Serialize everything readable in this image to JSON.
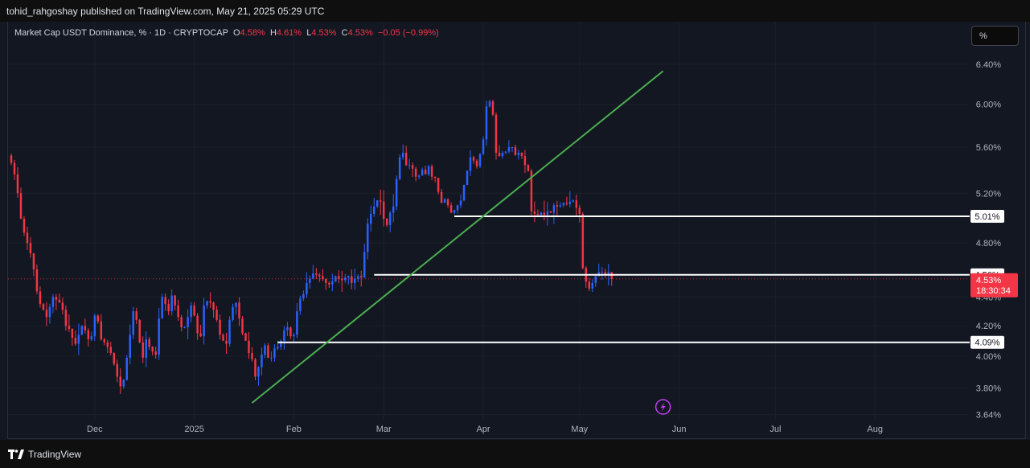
{
  "header": {
    "publisher": "tohid_rahgoshay published on TradingView.com, May 21, 2025 05:29 UTC"
  },
  "legend": {
    "symbol": "Market Cap USDT Dominance, % · 1D · CRYPTOCAP",
    "o_label": "O",
    "o_value": "4.58%",
    "h_label": "H",
    "h_value": "4.61%",
    "l_label": "L",
    "l_value": "4.53%",
    "c_label": "C",
    "c_value": "4.53%",
    "change": "−0.05 (−0.99%)"
  },
  "toolbar": {
    "unit_button": "%"
  },
  "footer": {
    "brand": "TradingView",
    "logo_icon": "tradingview-logo-icon"
  },
  "colors": {
    "up": "#2962ff",
    "down": "#f23645",
    "trendline": "#4caf50",
    "level": "#ffffff",
    "background": "#131722"
  },
  "chart_data": {
    "type": "candlestick",
    "title": "",
    "yscale": "log",
    "ylim": [
      3.62,
      6.55
    ],
    "y_ticks": [
      3.64,
      3.8,
      4.0,
      4.2,
      4.4,
      4.8,
      5.2,
      5.6,
      6.0,
      6.4
    ],
    "y_tick_labels": [
      "3.64%",
      "3.80%",
      "4.00%",
      "4.20%",
      "4.40%",
      "4.80%",
      "5.20%",
      "5.60%",
      "6.00%",
      "6.40%"
    ],
    "x_range": [
      "2024-11-04",
      "2025-08-30"
    ],
    "x_ticks": [
      {
        "date": "2024-12-01",
        "label": "Dec"
      },
      {
        "date": "2025-01-01",
        "label": "2025"
      },
      {
        "date": "2025-02-01",
        "label": "Feb"
      },
      {
        "date": "2025-03-01",
        "label": "Mar"
      },
      {
        "date": "2025-04-01",
        "label": "Apr"
      },
      {
        "date": "2025-05-01",
        "label": "May"
      },
      {
        "date": "2025-06-01",
        "label": "Jun"
      },
      {
        "date": "2025-07-01",
        "label": "Jul"
      },
      {
        "date": "2025-08-01",
        "label": "Aug"
      }
    ],
    "series_start": "2024-11-05",
    "closes": [
      5.46,
      5.36,
      5.2,
      4.99,
      4.88,
      4.8,
      4.72,
      4.6,
      4.44,
      4.35,
      4.31,
      4.26,
      4.33,
      4.4,
      4.38,
      4.36,
      4.31,
      4.2,
      4.18,
      4.12,
      4.08,
      4.14,
      4.2,
      4.17,
      4.11,
      4.13,
      4.27,
      4.23,
      4.11,
      4.09,
      4.06,
      4.02,
      3.95,
      3.87,
      3.81,
      3.85,
      3.99,
      4.14,
      4.3,
      4.24,
      4.09,
      3.99,
      4.11,
      4.06,
      4.03,
      4.01,
      4.25,
      4.4,
      4.35,
      4.3,
      4.41,
      4.34,
      4.26,
      4.19,
      4.19,
      4.26,
      4.34,
      4.27,
      4.15,
      4.13,
      4.34,
      4.37,
      4.36,
      4.31,
      4.24,
      4.14,
      4.1,
      4.08,
      4.24,
      4.33,
      4.36,
      4.25,
      4.15,
      4.1,
      4.02,
      3.98,
      3.87,
      3.93,
      4.01,
      4.07,
      3.99,
      3.99,
      4.05,
      4.06,
      4.1,
      4.17,
      4.19,
      4.13,
      4.14,
      4.3,
      4.39,
      4.42,
      4.5,
      4.53,
      4.57,
      4.56,
      4.55,
      4.53,
      4.5,
      4.49,
      4.51,
      4.55,
      4.53,
      4.52,
      4.54,
      4.55,
      4.5,
      4.53,
      4.55,
      4.54,
      4.73,
      4.95,
      5.03,
      5.09,
      5.14,
      5.13,
      4.99,
      4.94,
      5.04,
      5.09,
      5.32,
      5.51,
      5.55,
      5.44,
      5.44,
      5.41,
      5.34,
      5.35,
      5.4,
      5.36,
      5.43,
      5.34,
      5.33,
      5.21,
      5.12,
      5.15,
      5.1,
      5.04,
      5.06,
      5.1,
      5.14,
      5.27,
      5.39,
      5.51,
      5.48,
      5.43,
      5.54,
      5.67,
      5.98,
      6.03,
      5.9,
      5.55,
      5.52,
      5.55,
      5.56,
      5.6,
      5.6,
      5.53,
      5.55,
      5.52,
      5.44,
      5.39,
      5.05,
      5.03,
      5.02,
      5.04,
      5.02,
      5.05,
      5.04,
      5.1,
      5.09,
      5.1,
      5.12,
      5.11,
      5.13,
      5.14,
      5.08,
      5.03,
      4.61,
      4.51,
      4.46,
      4.5,
      4.55,
      4.58,
      4.58,
      4.56,
      4.58,
      4.53
    ]
  },
  "annotations": {
    "levels": [
      {
        "value": 5.01,
        "label": "5.01%",
        "from": "2025-03-23"
      },
      {
        "value": 4.56,
        "label": "4.56%",
        "from": "2025-02-26"
      },
      {
        "value": 4.09,
        "label": "4.09%",
        "from": "2025-01-27"
      }
    ],
    "trendline": {
      "from": {
        "date": "2025-01-19",
        "value": 3.71
      },
      "to": {
        "date": "2025-05-27",
        "value": 6.33
      }
    },
    "last_price": {
      "label": "4.53%",
      "countdown": "18:30:34"
    },
    "event_icon": "lightning-bolt-icon",
    "event_date": "2025-05-27"
  }
}
